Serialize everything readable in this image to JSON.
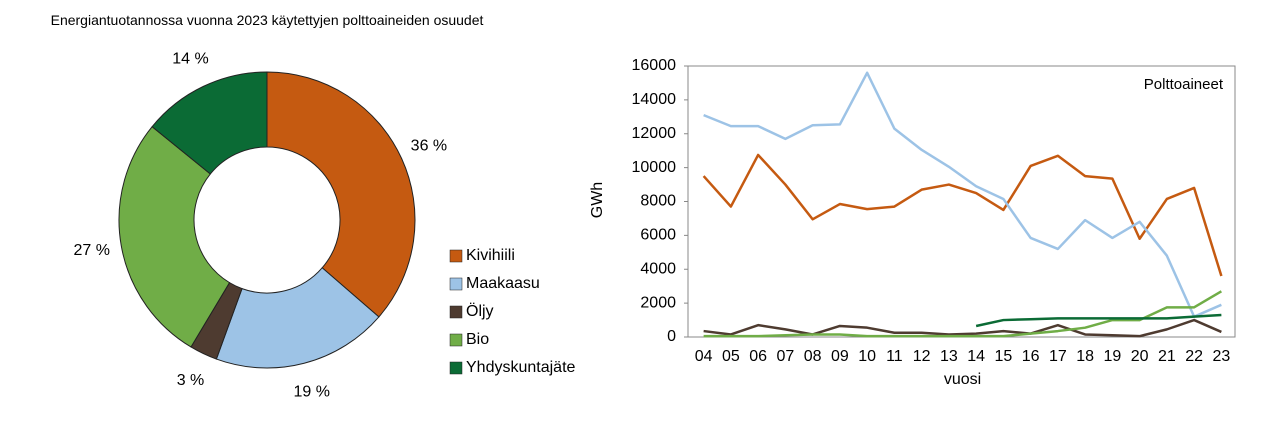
{
  "chart_data": [
    {
      "type": "pie",
      "title": "Energiantuotannossa vuonna 2023 käytettyjen polttoaineiden osuudet",
      "categories": [
        "Kivihiili",
        "Maakaasu",
        "Öljy",
        "Bio",
        "Yhdyskuntajäte"
      ],
      "values": [
        36,
        19,
        3,
        27,
        14
      ],
      "value_labels": [
        "36 %",
        "19 %",
        "3 %",
        "27 %",
        "14 %"
      ],
      "colors": [
        "#c55a11",
        "#9dc3e6",
        "#4e3b30",
        "#70ad47",
        "#0b6b35"
      ],
      "donut": true,
      "legend": "right"
    },
    {
      "type": "line",
      "annotation": "Polttoaineet",
      "ylabel": "GWh",
      "xlabel": "vuosi",
      "categories": [
        "04",
        "05",
        "06",
        "07",
        "08",
        "09",
        "10",
        "11",
        "12",
        "13",
        "14",
        "15",
        "16",
        "17",
        "18",
        "19",
        "20",
        "21",
        "22",
        "23"
      ],
      "ylim": [
        0,
        16000
      ],
      "yticks": [
        0,
        2000,
        4000,
        6000,
        8000,
        10000,
        12000,
        14000,
        16000
      ],
      "series": [
        {
          "name": "Kivihiili",
          "color": "#c55a11",
          "values": [
            9500,
            7700,
            10750,
            9000,
            6950,
            7850,
            7550,
            7700,
            8700,
            9000,
            8500,
            7500,
            10100,
            10700,
            9500,
            9350,
            5800,
            8150,
            8800,
            3600
          ]
        },
        {
          "name": "Maakaasu",
          "color": "#9dc3e6",
          "values": [
            13100,
            12450,
            12450,
            11700,
            12500,
            12550,
            15600,
            12300,
            11050,
            10050,
            8900,
            8150,
            5850,
            5200,
            6900,
            5850,
            6800,
            4800,
            1200,
            1900
          ]
        },
        {
          "name": "Öljy",
          "color": "#4e3b30",
          "values": [
            350,
            150,
            700,
            450,
            150,
            650,
            550,
            250,
            250,
            150,
            200,
            350,
            200,
            700,
            150,
            100,
            50,
            450,
            1000,
            300
          ]
        },
        {
          "name": "Bio",
          "color": "#70ad47",
          "values": [
            50,
            50,
            50,
            100,
            150,
            150,
            50,
            50,
            50,
            50,
            50,
            50,
            200,
            350,
            550,
            1000,
            1000,
            1750,
            1750,
            2700
          ]
        },
        {
          "name": "Yhdyskuntajäte",
          "color": "#0b6b35",
          "values": [
            null,
            null,
            null,
            null,
            null,
            null,
            null,
            null,
            null,
            null,
            650,
            1000,
            1050,
            1100,
            1100,
            1100,
            1100,
            1100,
            1200,
            1300
          ]
        }
      ]
    }
  ]
}
